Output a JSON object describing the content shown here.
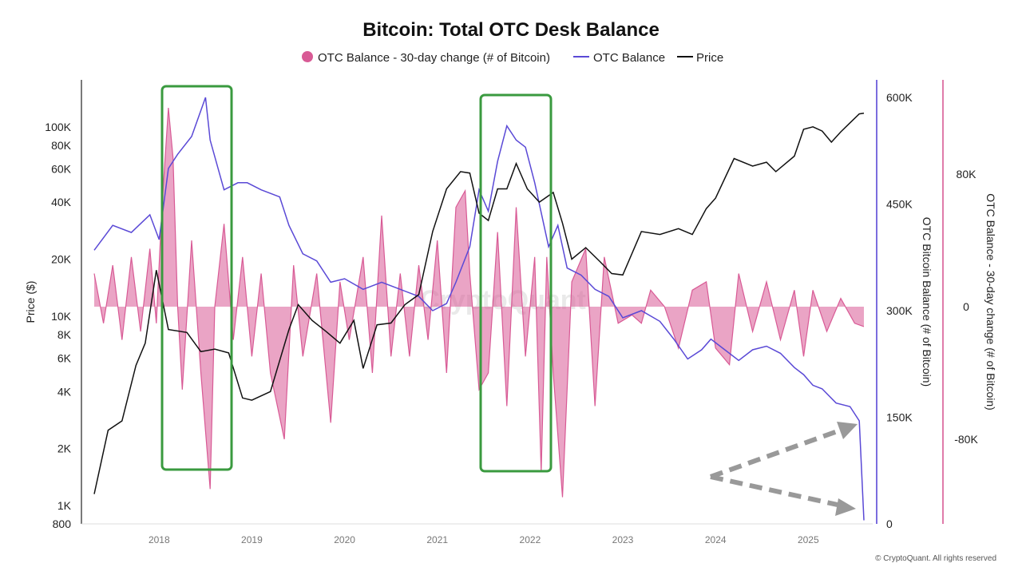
{
  "chart_data": {
    "type": "line",
    "title": "Bitcoin: Total OTC Desk Balance",
    "legend_position": "top-center",
    "grid": false,
    "legend": [
      {
        "name": "OTC Balance - 30-day change (# of Bitcoin)",
        "kind": "area",
        "color": "#d85a95"
      },
      {
        "name": "OTC Balance",
        "kind": "line",
        "color": "#5a49d6"
      },
      {
        "name": "Price",
        "kind": "line",
        "color": "#111111"
      }
    ],
    "axes": {
      "x": {
        "ticks": [
          "2018",
          "2019",
          "2020",
          "2021",
          "2022",
          "2023",
          "2024",
          "2025"
        ]
      },
      "y_left": {
        "label": "Price ($)",
        "scale": "log",
        "range": [
          800,
          120000
        ],
        "ticks": [
          {
            "value": 800,
            "label": "800"
          },
          {
            "value": 1000,
            "label": "1K"
          },
          {
            "value": 2000,
            "label": "2K"
          },
          {
            "value": 4000,
            "label": "4K"
          },
          {
            "value": 6000,
            "label": "6K"
          },
          {
            "value": 8000,
            "label": "8K"
          },
          {
            "value": 10000,
            "label": "10K"
          },
          {
            "value": 20000,
            "label": "20K"
          },
          {
            "value": 40000,
            "label": "40K"
          },
          {
            "value": 60000,
            "label": "60K"
          },
          {
            "value": 80000,
            "label": "80K"
          },
          {
            "value": 100000,
            "label": "100K"
          }
        ]
      },
      "y_right1": {
        "label": "OTC Bitcoin Balance (# of Bitcoin)",
        "range": [
          0,
          600000
        ],
        "ticks": [
          {
            "value": 0,
            "label": "0"
          },
          {
            "value": 150000,
            "label": "150K"
          },
          {
            "value": 300000,
            "label": "300K"
          },
          {
            "value": 450000,
            "label": "450K"
          },
          {
            "value": 600000,
            "label": "600K"
          }
        ]
      },
      "y_right2": {
        "label": "OTC Balance - 30-day change (# of Bitcoin)",
        "range": [
          -130000,
          130000
        ],
        "ticks": [
          {
            "value": -80000,
            "label": "-80K"
          },
          {
            "value": 0,
            "label": "0"
          },
          {
            "value": 80000,
            "label": "80K"
          }
        ]
      }
    },
    "series": [
      {
        "name": "Price",
        "axis": "y_left",
        "color": "#111111",
        "points": [
          [
            2017.3,
            1150
          ],
          [
            2017.45,
            2500
          ],
          [
            2017.6,
            2800
          ],
          [
            2017.75,
            5500
          ],
          [
            2017.85,
            7200
          ],
          [
            2017.97,
            17500
          ],
          [
            2018.1,
            8500
          ],
          [
            2018.3,
            8200
          ],
          [
            2018.45,
            6500
          ],
          [
            2018.6,
            6700
          ],
          [
            2018.75,
            6400
          ],
          [
            2018.9,
            3700
          ],
          [
            2019.0,
            3600
          ],
          [
            2019.2,
            4000
          ],
          [
            2019.4,
            8500
          ],
          [
            2019.5,
            11500
          ],
          [
            2019.65,
            9500
          ],
          [
            2019.8,
            8300
          ],
          [
            2019.95,
            7200
          ],
          [
            2020.1,
            9500
          ],
          [
            2020.2,
            5300
          ],
          [
            2020.35,
            9000
          ],
          [
            2020.5,
            9200
          ],
          [
            2020.65,
            11500
          ],
          [
            2020.8,
            13000
          ],
          [
            2020.95,
            28000
          ],
          [
            2021.1,
            47000
          ],
          [
            2021.25,
            58000
          ],
          [
            2021.35,
            57000
          ],
          [
            2021.45,
            35000
          ],
          [
            2021.55,
            32000
          ],
          [
            2021.65,
            47000
          ],
          [
            2021.75,
            47000
          ],
          [
            2021.85,
            64000
          ],
          [
            2021.97,
            47000
          ],
          [
            2022.1,
            40000
          ],
          [
            2022.25,
            45000
          ],
          [
            2022.35,
            31000
          ],
          [
            2022.45,
            20000
          ],
          [
            2022.6,
            23000
          ],
          [
            2022.75,
            19500
          ],
          [
            2022.88,
            16800
          ],
          [
            2023.0,
            16500
          ],
          [
            2023.2,
            28000
          ],
          [
            2023.4,
            27000
          ],
          [
            2023.6,
            29000
          ],
          [
            2023.75,
            27000
          ],
          [
            2023.9,
            37000
          ],
          [
            2024.0,
            42000
          ],
          [
            2024.2,
            68000
          ],
          [
            2024.4,
            62000
          ],
          [
            2024.55,
            65000
          ],
          [
            2024.65,
            58000
          ],
          [
            2024.85,
            70000
          ],
          [
            2024.95,
            97000
          ],
          [
            2025.05,
            100000
          ],
          [
            2025.15,
            95000
          ],
          [
            2025.25,
            83000
          ],
          [
            2025.35,
            94000
          ],
          [
            2025.45,
            105000
          ],
          [
            2025.55,
            117000
          ],
          [
            2025.6,
            118000
          ]
        ]
      },
      {
        "name": "OTC Balance",
        "axis": "y_right1",
        "color": "#5a49d6",
        "points": [
          [
            2017.3,
            385000
          ],
          [
            2017.5,
            420000
          ],
          [
            2017.7,
            410000
          ],
          [
            2017.9,
            435000
          ],
          [
            2018.0,
            400000
          ],
          [
            2018.1,
            500000
          ],
          [
            2018.2,
            520000
          ],
          [
            2018.35,
            545000
          ],
          [
            2018.5,
            600000
          ],
          [
            2018.55,
            540000
          ],
          [
            2018.7,
            470000
          ],
          [
            2018.85,
            480000
          ],
          [
            2018.95,
            480000
          ],
          [
            2019.1,
            470000
          ],
          [
            2019.3,
            460000
          ],
          [
            2019.4,
            420000
          ],
          [
            2019.55,
            380000
          ],
          [
            2019.7,
            370000
          ],
          [
            2019.85,
            340000
          ],
          [
            2020.0,
            345000
          ],
          [
            2020.2,
            330000
          ],
          [
            2020.4,
            340000
          ],
          [
            2020.6,
            330000
          ],
          [
            2020.8,
            320000
          ],
          [
            2020.95,
            300000
          ],
          [
            2021.1,
            310000
          ],
          [
            2021.2,
            340000
          ],
          [
            2021.35,
            390000
          ],
          [
            2021.45,
            470000
          ],
          [
            2021.55,
            440000
          ],
          [
            2021.65,
            510000
          ],
          [
            2021.75,
            560000
          ],
          [
            2021.85,
            540000
          ],
          [
            2021.95,
            530000
          ],
          [
            2022.05,
            480000
          ],
          [
            2022.15,
            420000
          ],
          [
            2022.2,
            390000
          ],
          [
            2022.3,
            420000
          ],
          [
            2022.4,
            360000
          ],
          [
            2022.55,
            350000
          ],
          [
            2022.7,
            330000
          ],
          [
            2022.85,
            320000
          ],
          [
            2023.0,
            290000
          ],
          [
            2023.2,
            300000
          ],
          [
            2023.4,
            285000
          ],
          [
            2023.55,
            260000
          ],
          [
            2023.7,
            232000
          ],
          [
            2023.85,
            245000
          ],
          [
            2023.95,
            260000
          ],
          [
            2024.1,
            245000
          ],
          [
            2024.25,
            230000
          ],
          [
            2024.4,
            245000
          ],
          [
            2024.55,
            250000
          ],
          [
            2024.7,
            240000
          ],
          [
            2024.85,
            220000
          ],
          [
            2024.95,
            210000
          ],
          [
            2025.05,
            195000
          ],
          [
            2025.15,
            190000
          ],
          [
            2025.3,
            170000
          ],
          [
            2025.45,
            165000
          ],
          [
            2025.55,
            145000
          ],
          [
            2025.6,
            5000
          ]
        ]
      },
      {
        "name": "OTC Balance - 30-day change (# of Bitcoin)",
        "axis": "y_right2",
        "color": "#d85a95",
        "points": [
          [
            2017.3,
            20000
          ],
          [
            2017.4,
            -10000
          ],
          [
            2017.5,
            25000
          ],
          [
            2017.6,
            -20000
          ],
          [
            2017.7,
            30000
          ],
          [
            2017.8,
            -15000
          ],
          [
            2017.9,
            35000
          ],
          [
            2017.97,
            -10000
          ],
          [
            2018.03,
            60000
          ],
          [
            2018.1,
            120000
          ],
          [
            2018.15,
            90000
          ],
          [
            2018.2,
            0
          ],
          [
            2018.25,
            -50000
          ],
          [
            2018.35,
            40000
          ],
          [
            2018.45,
            -40000
          ],
          [
            2018.55,
            -110000
          ],
          [
            2018.6,
            0
          ],
          [
            2018.7,
            50000
          ],
          [
            2018.8,
            -20000
          ],
          [
            2018.9,
            30000
          ],
          [
            2019.0,
            -30000
          ],
          [
            2019.1,
            20000
          ],
          [
            2019.2,
            -40000
          ],
          [
            2019.35,
            -80000
          ],
          [
            2019.45,
            25000
          ],
          [
            2019.55,
            -30000
          ],
          [
            2019.7,
            20000
          ],
          [
            2019.85,
            -70000
          ],
          [
            2019.95,
            15000
          ],
          [
            2020.05,
            -20000
          ],
          [
            2020.2,
            30000
          ],
          [
            2020.3,
            -40000
          ],
          [
            2020.4,
            55000
          ],
          [
            2020.5,
            -30000
          ],
          [
            2020.6,
            20000
          ],
          [
            2020.7,
            -30000
          ],
          [
            2020.8,
            25000
          ],
          [
            2020.9,
            -20000
          ],
          [
            2021.0,
            40000
          ],
          [
            2021.1,
            -40000
          ],
          [
            2021.2,
            60000
          ],
          [
            2021.3,
            70000
          ],
          [
            2021.35,
            20000
          ],
          [
            2021.45,
            -50000
          ],
          [
            2021.55,
            -40000
          ],
          [
            2021.65,
            45000
          ],
          [
            2021.75,
            -60000
          ],
          [
            2021.85,
            60000
          ],
          [
            2021.95,
            -30000
          ],
          [
            2022.05,
            30000
          ],
          [
            2022.12,
            -100000
          ],
          [
            2022.18,
            30000
          ],
          [
            2022.25,
            -40000
          ],
          [
            2022.35,
            -115000
          ],
          [
            2022.45,
            15000
          ],
          [
            2022.6,
            35000
          ],
          [
            2022.7,
            -60000
          ],
          [
            2022.8,
            30000
          ],
          [
            2022.95,
            -10000
          ],
          [
            2023.1,
            -5000
          ],
          [
            2023.2,
            -10000
          ],
          [
            2023.3,
            10000
          ],
          [
            2023.45,
            0
          ],
          [
            2023.6,
            -25000
          ],
          [
            2023.75,
            10000
          ],
          [
            2023.9,
            15000
          ],
          [
            2024.0,
            -25000
          ],
          [
            2024.15,
            -35000
          ],
          [
            2024.25,
            20000
          ],
          [
            2024.4,
            -15000
          ],
          [
            2024.55,
            15000
          ],
          [
            2024.7,
            -20000
          ],
          [
            2024.85,
            10000
          ],
          [
            2024.95,
            -30000
          ],
          [
            2025.05,
            10000
          ],
          [
            2025.2,
            -15000
          ],
          [
            2025.35,
            5000
          ],
          [
            2025.5,
            -10000
          ],
          [
            2025.6,
            -12000
          ]
        ]
      }
    ]
  },
  "watermark": "CryptoQuant",
  "copyright": "© CryptoQuant. All rights reserved"
}
